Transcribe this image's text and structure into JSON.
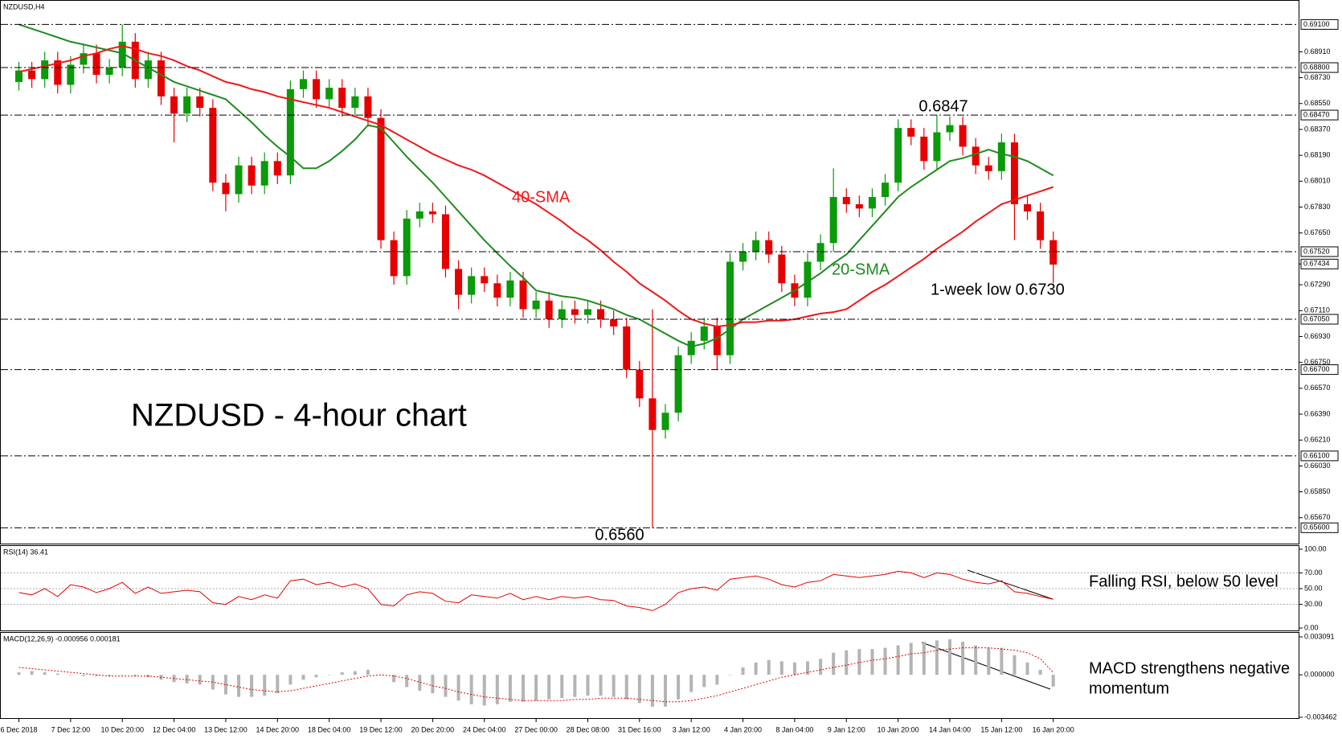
{
  "chart_data": [
    {
      "type": "candlestick",
      "title": "NZDUSD,H4",
      "heading": "NZDUSD - 4-hour chart",
      "categories": [
        "6 Dec 2018",
        null,
        null,
        null,
        "7 Dec 12:00",
        null,
        null,
        null,
        "10 Dec 20:00",
        null,
        null,
        null,
        "12 Dec 04:00",
        null,
        null,
        null,
        "13 Dec 12:00",
        null,
        null,
        null,
        "14 Dec 20:00",
        null,
        null,
        null,
        "18 Dec 04:00",
        null,
        null,
        null,
        "19 Dec 12:00",
        null,
        null,
        null,
        "20 Dec 20:00",
        null,
        null,
        null,
        "24 Dec 04:00",
        null,
        null,
        null,
        "27 Dec 00:00",
        null,
        null,
        null,
        "28 Dec 08:00",
        null,
        null,
        null,
        "31 Dec 16:00",
        null,
        null,
        null,
        "3 Jan 12:00",
        null,
        null,
        null,
        "4 Jan 20:00",
        null,
        null,
        null,
        "8 Jan 04:00",
        null,
        null,
        null,
        "9 Jan 12:00",
        null,
        null,
        null,
        "10 Jan 20:00",
        null,
        null,
        null,
        "14 Jan 04:00",
        null,
        null,
        null,
        "15 Jan 12:00",
        null,
        null,
        null,
        "16 Jan 20:00"
      ],
      "open": [
        0.687,
        0.6878,
        0.6872,
        0.6885,
        0.6868,
        0.6882,
        0.689,
        0.6875,
        0.688,
        0.6898,
        0.6872,
        0.6885,
        0.686,
        0.6848,
        0.686,
        0.6852,
        0.68,
        0.6792,
        0.6812,
        0.6798,
        0.6815,
        0.6805,
        0.6865,
        0.6872,
        0.6858,
        0.6866,
        0.6852,
        0.686,
        0.6845,
        0.676,
        0.6735,
        0.6775,
        0.678,
        0.6778,
        0.674,
        0.6722,
        0.6735,
        0.673,
        0.672,
        0.6732,
        0.6712,
        0.6718,
        0.6705,
        0.6712,
        0.6708,
        0.6712,
        0.6705,
        0.67,
        0.667,
        0.665,
        0.6628,
        0.664,
        0.668,
        0.669,
        0.67,
        0.668,
        0.6745,
        0.6752,
        0.676,
        0.675,
        0.673,
        0.672,
        0.6745,
        0.6758,
        0.679,
        0.6785,
        0.6782,
        0.679,
        0.68,
        0.6838,
        0.6832,
        0.6815,
        0.6835,
        0.684,
        0.6825,
        0.6812,
        0.6808,
        0.6828,
        0.6785,
        0.678,
        0.676
      ],
      "high": [
        0.6884,
        0.6884,
        0.6891,
        0.6891,
        0.6888,
        0.6896,
        0.6896,
        0.6886,
        0.691,
        0.6904,
        0.6891,
        0.6891,
        0.6866,
        0.6866,
        0.6866,
        0.6858,
        0.6806,
        0.6818,
        0.6818,
        0.6821,
        0.6821,
        0.6871,
        0.6878,
        0.6878,
        0.6872,
        0.6872,
        0.6866,
        0.6866,
        0.6851,
        0.6766,
        0.6781,
        0.6786,
        0.6786,
        0.6784,
        0.6746,
        0.6741,
        0.6741,
        0.6736,
        0.6738,
        0.6738,
        0.6724,
        0.6724,
        0.6718,
        0.6718,
        0.6718,
        0.6718,
        0.6711,
        0.6706,
        0.6676,
        0.6712,
        0.6646,
        0.6686,
        0.6696,
        0.6706,
        0.6706,
        0.6751,
        0.6758,
        0.6766,
        0.6766,
        0.6756,
        0.6736,
        0.6751,
        0.6764,
        0.681,
        0.6796,
        0.6791,
        0.6796,
        0.6806,
        0.6844,
        0.6844,
        0.6838,
        0.6847,
        0.6846,
        0.6846,
        0.6831,
        0.6818,
        0.6834,
        0.6834,
        0.6791,
        0.6786,
        0.6766
      ],
      "low": [
        0.6864,
        0.6866,
        0.6866,
        0.6862,
        0.6862,
        0.6876,
        0.6869,
        0.6869,
        0.6874,
        0.6866,
        0.6866,
        0.6854,
        0.6828,
        0.6842,
        0.6846,
        0.6794,
        0.678,
        0.6786,
        0.6792,
        0.6792,
        0.6799,
        0.6799,
        0.6859,
        0.6852,
        0.6852,
        0.6846,
        0.6846,
        0.6839,
        0.6754,
        0.6729,
        0.6729,
        0.6769,
        0.6772,
        0.6734,
        0.6712,
        0.6716,
        0.6724,
        0.6714,
        0.6714,
        0.6706,
        0.6706,
        0.6699,
        0.6699,
        0.6702,
        0.6702,
        0.6699,
        0.6694,
        0.6664,
        0.6644,
        0.656,
        0.6622,
        0.6634,
        0.6674,
        0.6684,
        0.667,
        0.6674,
        0.6739,
        0.6746,
        0.6744,
        0.6724,
        0.6714,
        0.6714,
        0.6739,
        0.6752,
        0.6779,
        0.6776,
        0.6776,
        0.6784,
        0.6794,
        0.6826,
        0.6809,
        0.6809,
        0.6829,
        0.6819,
        0.6806,
        0.6802,
        0.6802,
        0.676,
        0.6774,
        0.6754,
        0.673
      ],
      "close": [
        0.6878,
        0.6872,
        0.6885,
        0.6868,
        0.6882,
        0.689,
        0.6875,
        0.688,
        0.6898,
        0.6872,
        0.6885,
        0.686,
        0.6848,
        0.686,
        0.6852,
        0.68,
        0.6792,
        0.6812,
        0.6798,
        0.6815,
        0.6805,
        0.6865,
        0.6872,
        0.6858,
        0.6866,
        0.6852,
        0.686,
        0.6845,
        0.676,
        0.6735,
        0.6775,
        0.678,
        0.6778,
        0.674,
        0.6722,
        0.6735,
        0.673,
        0.672,
        0.6732,
        0.6712,
        0.6718,
        0.6705,
        0.6712,
        0.6708,
        0.6712,
        0.6705,
        0.67,
        0.667,
        0.665,
        0.6628,
        0.664,
        0.668,
        0.669,
        0.67,
        0.668,
        0.6745,
        0.6752,
        0.676,
        0.675,
        0.673,
        0.672,
        0.6745,
        0.6758,
        0.679,
        0.6785,
        0.6782,
        0.679,
        0.68,
        0.6838,
        0.6832,
        0.6815,
        0.6835,
        0.684,
        0.6825,
        0.6812,
        0.6808,
        0.6828,
        0.6785,
        0.678,
        0.676,
        0.6743
      ],
      "color_up": "#0a9a0a",
      "color_down": "#e60000",
      "series": [
        {
          "name": "20-SMA",
          "color": "#1e8c1e",
          "values": [
            0.691,
            0.6907,
            0.6904,
            0.6901,
            0.6898,
            0.6896,
            0.6894,
            0.6892,
            0.689,
            0.6885,
            0.688,
            0.6875,
            0.687,
            0.6867,
            0.6864,
            0.6861,
            0.6858,
            0.685,
            0.6842,
            0.6833,
            0.6825,
            0.6818,
            0.681,
            0.681,
            0.6815,
            0.6822,
            0.683,
            0.684,
            0.6838,
            0.6828,
            0.6818,
            0.6809,
            0.68,
            0.679,
            0.678,
            0.677,
            0.676,
            0.6751,
            0.6742,
            0.6734,
            0.6725,
            0.6723,
            0.6721,
            0.672,
            0.6718,
            0.6715,
            0.6712,
            0.6708,
            0.6705,
            0.67,
            0.6695,
            0.669,
            0.6686,
            0.6688,
            0.6692,
            0.6698,
            0.6705,
            0.671,
            0.6715,
            0.672,
            0.6725,
            0.6731,
            0.6737,
            0.6744,
            0.675,
            0.676,
            0.677,
            0.678,
            0.679,
            0.6797,
            0.6803,
            0.6809,
            0.6815,
            0.6817,
            0.682,
            0.6823,
            0.682,
            0.6818,
            0.6815,
            0.681,
            0.6805
          ]
        },
        {
          "name": "40-SMA",
          "color": "#f01818",
          "values": [
            0.6877,
            0.6879,
            0.6881,
            0.6883,
            0.6885,
            0.6888,
            0.689,
            0.6893,
            0.6895,
            0.6893,
            0.689,
            0.6888,
            0.6885,
            0.6881,
            0.6878,
            0.6874,
            0.687,
            0.6868,
            0.6865,
            0.6863,
            0.686,
            0.6858,
            0.6856,
            0.6854,
            0.6852,
            0.6849,
            0.6846,
            0.6843,
            0.684,
            0.6835,
            0.683,
            0.6825,
            0.682,
            0.6816,
            0.6812,
            0.6809,
            0.6805,
            0.68,
            0.6795,
            0.679,
            0.6785,
            0.6779,
            0.6773,
            0.6766,
            0.676,
            0.6753,
            0.6745,
            0.6738,
            0.673,
            0.6724,
            0.6718,
            0.6711,
            0.6705,
            0.6702,
            0.67,
            0.6701,
            0.6703,
            0.6703,
            0.6704,
            0.6704,
            0.6705,
            0.6707,
            0.6709,
            0.671,
            0.6712,
            0.6718,
            0.6724,
            0.6729,
            0.6735,
            0.6741,
            0.6747,
            0.6754,
            0.676,
            0.6766,
            0.6773,
            0.6779,
            0.6785,
            0.6788,
            0.6791,
            0.6794,
            0.6797
          ]
        }
      ],
      "ylim": [
        0.6549,
        0.6927
      ],
      "yticks": [
        {
          "value": 0.6891,
          "label": "0.68910"
        },
        {
          "value": 0.6873,
          "label": "0.68730"
        },
        {
          "value": 0.6855,
          "label": "0.68550"
        },
        {
          "value": 0.6837,
          "label": "0.68370"
        },
        {
          "value": 0.6819,
          "label": "0.68190"
        },
        {
          "value": 0.6801,
          "label": "0.68010"
        },
        {
          "value": 0.6783,
          "label": "0.67830"
        },
        {
          "value": 0.6765,
          "label": "0.67650"
        },
        {
          "value": 0.6729,
          "label": "0.67290"
        },
        {
          "value": 0.6711,
          "label": "0.67110"
        },
        {
          "value": 0.6693,
          "label": "0.66930"
        },
        {
          "value": 0.6675,
          "label": "0.66750"
        },
        {
          "value": 0.6657,
          "label": "0.66570"
        },
        {
          "value": 0.6639,
          "label": "0.66390"
        },
        {
          "value": 0.6621,
          "label": "0.66210"
        },
        {
          "value": 0.6603,
          "label": "0.66030"
        },
        {
          "value": 0.6585,
          "label": "0.65850"
        },
        {
          "value": 0.6567,
          "label": "0.65670"
        }
      ],
      "levels": [
        {
          "value": 0.691,
          "label": "0.69100"
        },
        {
          "value": 0.688,
          "label": "0.68800"
        },
        {
          "value": 0.6847,
          "label": "0.68470"
        },
        {
          "value": 0.6752,
          "label": "0.67520"
        },
        {
          "value": 0.6705,
          "label": "0.67050"
        },
        {
          "value": 0.667,
          "label": "0.66700"
        },
        {
          "value": 0.661,
          "label": "0.66100"
        },
        {
          "value": 0.656,
          "label": "0.65600"
        }
      ],
      "last_price": {
        "value": 0.67434,
        "label": "0.67434"
      },
      "annotations": [
        "0.6847",
        "1-week low 0.6730",
        "0.6560"
      ]
    },
    {
      "type": "line",
      "title": "RSI(14) 36.41",
      "color": "#e60000",
      "values": [
        45,
        42,
        50,
        40,
        55,
        52,
        45,
        50,
        58,
        44,
        52,
        44,
        46,
        48,
        46,
        32,
        30,
        40,
        36,
        42,
        38,
        60,
        62,
        55,
        58,
        52,
        56,
        50,
        30,
        28,
        42,
        46,
        44,
        34,
        32,
        42,
        40,
        38,
        44,
        36,
        40,
        36,
        40,
        38,
        40,
        36,
        35,
        28,
        26,
        22,
        30,
        45,
        50,
        52,
        48,
        62,
        64,
        66,
        62,
        55,
        52,
        58,
        60,
        68,
        66,
        64,
        66,
        68,
        72,
        70,
        64,
        70,
        68,
        62,
        58,
        56,
        60,
        46,
        44,
        40,
        36.41
      ],
      "ylim": [
        0,
        100
      ],
      "yticks": [
        {
          "value": 100,
          "label": "100.00"
        },
        {
          "value": 70,
          "label": "70.00"
        },
        {
          "value": 50,
          "label": "50.00"
        },
        {
          "value": 30,
          "label": "30.00"
        },
        {
          "value": 0,
          "label": "0.00"
        }
      ],
      "annotation": [
        "Falling RSI, below 50 level"
      ]
    },
    {
      "type": "macd",
      "title": "MACD(12,26,9) -0.000956 0.000181",
      "color": "#b4b4b4",
      "signal_color": "#e60000",
      "values": [
        0.0002,
        0.0003,
        0.0002,
        0.0001,
        0,
        -0.0001,
        -0.0001,
        -0.0001,
        0,
        -0.0001,
        -0.0002,
        -0.0004,
        -0.0006,
        -0.0007,
        -0.0008,
        -0.0012,
        -0.0016,
        -0.0018,
        -0.0018,
        -0.0017,
        -0.0015,
        -0.0008,
        -0.0004,
        -0.0002,
        0,
        0.0002,
        0.0003,
        0.0004,
        0,
        -0.0006,
        -0.001,
        -0.0013,
        -0.0015,
        -0.0018,
        -0.0021,
        -0.0024,
        -0.0025,
        -0.0024,
        -0.0022,
        -0.0022,
        -0.0021,
        -0.002,
        -0.0019,
        -0.0018,
        -0.0017,
        -0.0017,
        -0.0018,
        -0.002,
        -0.0023,
        -0.0026,
        -0.0026,
        -0.002,
        -0.0014,
        -0.001,
        -0.0008,
        0,
        0.0006,
        0.001,
        0.0012,
        0.0011,
        0.001,
        0.0011,
        0.0013,
        0.0018,
        0.002,
        0.0021,
        0.0021,
        0.0022,
        0.0024,
        0.0026,
        0.0027,
        0.0028,
        0.0029,
        0.0027,
        0.0024,
        0.0022,
        0.0022,
        0.0016,
        0.001,
        0.0004,
        -0.000956
      ],
      "signal": [
        0.0006,
        0.0005,
        0.0004,
        0.0003,
        0.0002,
        0.0001,
        0,
        -0.0001,
        -0.0001,
        -0.0001,
        -0.0001,
        -0.0002,
        -0.0003,
        -0.0004,
        -0.0005,
        -0.0006,
        -0.0008,
        -0.001,
        -0.0012,
        -0.0013,
        -0.0014,
        -0.0013,
        -0.0011,
        -0.0009,
        -0.0007,
        -0.0005,
        -0.0003,
        -0.0001,
        0,
        -0.0001,
        -0.0003,
        -0.0006,
        -0.0009,
        -0.0011,
        -0.0014,
        -0.0016,
        -0.0018,
        -0.0019,
        -0.002,
        -0.0021,
        -0.0021,
        -0.0021,
        -0.0021,
        -0.002,
        -0.002,
        -0.0019,
        -0.0019,
        -0.0019,
        -0.002,
        -0.0021,
        -0.0022,
        -0.0022,
        -0.0021,
        -0.0019,
        -0.0017,
        -0.0014,
        -0.0011,
        -0.0008,
        -0.0005,
        -0.0002,
        0,
        0.0002,
        0.0004,
        0.0006,
        0.0008,
        0.001,
        0.0012,
        0.0013,
        0.0015,
        0.0017,
        0.0018,
        0.002,
        0.0021,
        0.0022,
        0.0022,
        0.0022,
        0.0021,
        0.002,
        0.0018,
        0.0013,
        0.000181
      ],
      "ylim": [
        -0.003462,
        0.003091
      ],
      "yticks": [
        0.003091,
        {
          "value": 0,
          "label": "0.000000"
        },
        -0.003462
      ],
      "annotation": [
        "MACD strengthens negative",
        "momentum"
      ]
    }
  ]
}
